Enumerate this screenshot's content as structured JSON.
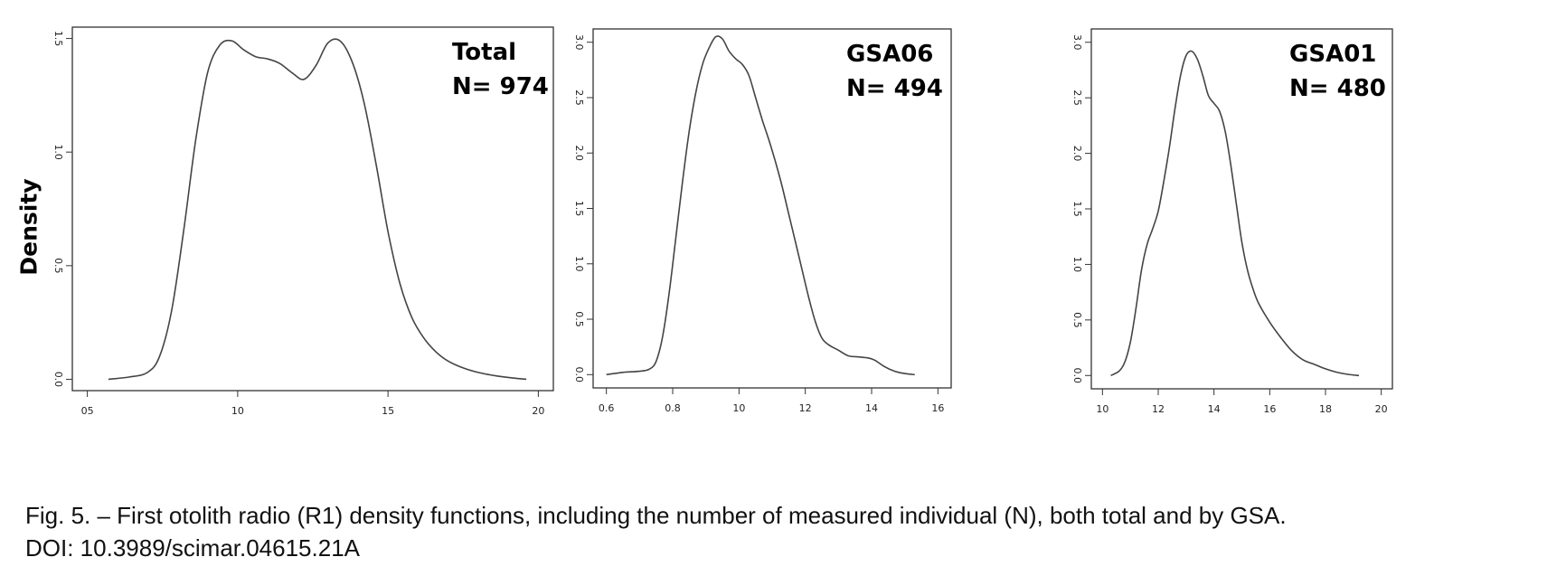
{
  "figure": {
    "ylabel": "Density",
    "caption_line1": "Fig. 5. – First otolith radio (R1) density functions, including the number of measured individual (N), both total and by GSA.",
    "caption_line2": "DOI: 10.3989/scimar.04615.21A"
  },
  "chart_data": [
    {
      "type": "line",
      "annotation_line1": "Total",
      "annotation_line2": "N= 974",
      "xlim": [
        0.45,
        2.05
      ],
      "ylim": [
        -0.05,
        1.55
      ],
      "x_ticks": [
        0.5,
        1.0,
        1.5,
        2.0
      ],
      "x_tick_labels": [
        "05",
        "10",
        "15",
        "20"
      ],
      "y_ticks": [
        0.0,
        0.5,
        1.0,
        1.5
      ],
      "y_tick_labels": [
        "0.0",
        "0.5",
        "1.0",
        "1.5"
      ],
      "series": [
        {
          "x": [
            0.57,
            0.64,
            0.7,
            0.74,
            0.78,
            0.82,
            0.86,
            0.9,
            0.94,
            0.98,
            1.02,
            1.06,
            1.1,
            1.14,
            1.18,
            1.22,
            1.26,
            1.3,
            1.34,
            1.38,
            1.42,
            1.46,
            1.5,
            1.54,
            1.58,
            1.62,
            1.66,
            1.7,
            1.75,
            1.8,
            1.86,
            1.92,
            1.96
          ],
          "y": [
            0.0,
            0.01,
            0.03,
            0.1,
            0.3,
            0.65,
            1.05,
            1.35,
            1.47,
            1.49,
            1.45,
            1.42,
            1.41,
            1.39,
            1.35,
            1.32,
            1.38,
            1.48,
            1.49,
            1.4,
            1.22,
            0.95,
            0.65,
            0.42,
            0.27,
            0.18,
            0.12,
            0.08,
            0.05,
            0.03,
            0.015,
            0.005,
            0.0
          ]
        }
      ],
      "color": "#444444"
    },
    {
      "type": "line",
      "annotation_line1": "GSA06",
      "annotation_line2": "N= 494",
      "xlim": [
        0.56,
        1.64
      ],
      "ylim": [
        -0.12,
        3.12
      ],
      "x_ticks": [
        0.6,
        0.8,
        1.0,
        1.2,
        1.4,
        1.6
      ],
      "x_tick_labels": [
        "0.6",
        "0.8",
        "10",
        "12",
        "14",
        "16"
      ],
      "y_ticks": [
        0.0,
        0.5,
        1.0,
        1.5,
        2.0,
        2.5,
        3.0
      ],
      "y_tick_labels": [
        "0.0",
        "0.5",
        "1.0",
        "1.5",
        "2.0",
        "2.5",
        "3.0"
      ],
      "series": [
        {
          "x": [
            0.6,
            0.65,
            0.7,
            0.73,
            0.75,
            0.77,
            0.79,
            0.81,
            0.83,
            0.85,
            0.87,
            0.89,
            0.91,
            0.93,
            0.95,
            0.97,
            0.99,
            1.01,
            1.03,
            1.05,
            1.07,
            1.09,
            1.11,
            1.13,
            1.15,
            1.17,
            1.19,
            1.21,
            1.23,
            1.25,
            1.27,
            1.3,
            1.33,
            1.36,
            1.39,
            1.41,
            1.44,
            1.47,
            1.5,
            1.53
          ],
          "y": [
            0.0,
            0.02,
            0.03,
            0.05,
            0.12,
            0.35,
            0.75,
            1.25,
            1.75,
            2.2,
            2.55,
            2.8,
            2.95,
            3.05,
            3.03,
            2.92,
            2.85,
            2.8,
            2.7,
            2.5,
            2.3,
            2.12,
            1.92,
            1.7,
            1.45,
            1.2,
            0.95,
            0.7,
            0.48,
            0.33,
            0.27,
            0.22,
            0.17,
            0.16,
            0.15,
            0.13,
            0.07,
            0.03,
            0.01,
            0.0
          ]
        }
      ],
      "color": "#444444"
    },
    {
      "type": "line",
      "annotation_line1": "GSA01",
      "annotation_line2": "N= 480",
      "xlim": [
        0.96,
        2.04
      ],
      "ylim": [
        -0.12,
        3.12
      ],
      "x_ticks": [
        1.0,
        1.2,
        1.4,
        1.6,
        1.8,
        2.0
      ],
      "x_tick_labels": [
        "10",
        "12",
        "14",
        "16",
        "18",
        "20"
      ],
      "y_ticks": [
        0.0,
        0.5,
        1.0,
        1.5,
        2.0,
        2.5,
        3.0
      ],
      "y_tick_labels": [
        "0.0",
        "0.5",
        "1.0",
        "1.5",
        "2.0",
        "2.5",
        "3.0"
      ],
      "series": [
        {
          "x": [
            1.03,
            1.06,
            1.08,
            1.1,
            1.12,
            1.14,
            1.16,
            1.18,
            1.2,
            1.22,
            1.24,
            1.26,
            1.28,
            1.3,
            1.32,
            1.34,
            1.36,
            1.38,
            1.4,
            1.42,
            1.44,
            1.46,
            1.48,
            1.5,
            1.52,
            1.54,
            1.56,
            1.6,
            1.64,
            1.68,
            1.72,
            1.76,
            1.8,
            1.84,
            1.88,
            1.92
          ],
          "y": [
            0.0,
            0.04,
            0.12,
            0.3,
            0.6,
            0.95,
            1.18,
            1.32,
            1.48,
            1.75,
            2.05,
            2.4,
            2.7,
            2.88,
            2.92,
            2.85,
            2.7,
            2.52,
            2.45,
            2.38,
            2.2,
            1.9,
            1.55,
            1.2,
            0.95,
            0.78,
            0.65,
            0.48,
            0.34,
            0.22,
            0.14,
            0.1,
            0.06,
            0.03,
            0.01,
            0.0
          ]
        }
      ],
      "color": "#444444"
    }
  ]
}
